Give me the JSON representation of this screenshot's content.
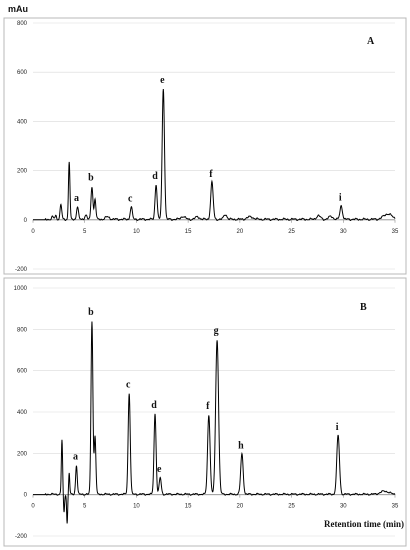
{
  "chart_data": [
    {
      "type": "line",
      "panel_label": "A",
      "ylabel": "mAu",
      "xlabel": "",
      "xlim": [
        0,
        35
      ],
      "ylim": [
        -200,
        800
      ],
      "xticks": [
        0,
        5,
        10,
        15,
        20,
        25,
        30,
        35
      ],
      "yticks": [
        -200,
        0,
        200,
        400,
        600,
        800
      ],
      "peaks": [
        {
          "label": "",
          "x": 1.9,
          "y": 10,
          "w": 0.08
        },
        {
          "label": "",
          "x": 2.2,
          "y": 15,
          "w": 0.08
        },
        {
          "label": "",
          "x": 2.7,
          "y": 60,
          "w": 0.08
        },
        {
          "label": "",
          "x": 3.5,
          "y": 235,
          "w": 0.07
        },
        {
          "label": "a",
          "x": 4.3,
          "y": 52,
          "w": 0.09
        },
        {
          "label": "",
          "x": 5.1,
          "y": 18,
          "w": 0.1
        },
        {
          "label": "b",
          "x": 5.7,
          "y": 135,
          "w": 0.09
        },
        {
          "label": "",
          "x": 6.0,
          "y": 82,
          "w": 0.08
        },
        {
          "label": "",
          "x": 7.2,
          "y": 10,
          "w": 0.2
        },
        {
          "label": "c",
          "x": 9.5,
          "y": 50,
          "w": 0.1
        },
        {
          "label": "d",
          "x": 11.9,
          "y": 142,
          "w": 0.1
        },
        {
          "label": "e",
          "x": 12.6,
          "y": 532,
          "w": 0.11
        },
        {
          "label": "",
          "x": 14.5,
          "y": 12,
          "w": 0.2
        },
        {
          "label": "",
          "x": 15.9,
          "y": 10,
          "w": 0.2
        },
        {
          "label": "f",
          "x": 17.3,
          "y": 150,
          "w": 0.12
        },
        {
          "label": "",
          "x": 18.6,
          "y": 20,
          "w": 0.15
        },
        {
          "label": "",
          "x": 21.0,
          "y": 10,
          "w": 0.3
        },
        {
          "label": "",
          "x": 27.6,
          "y": 14,
          "w": 0.2
        },
        {
          "label": "",
          "x": 28.8,
          "y": 12,
          "w": 0.2
        },
        {
          "label": "i",
          "x": 29.8,
          "y": 55,
          "w": 0.12
        },
        {
          "label": "",
          "x": 34.3,
          "y": 22,
          "w": 0.4
        }
      ]
    },
    {
      "type": "line",
      "panel_label": "B",
      "ylabel": "",
      "xlabel": "Retention time (min)",
      "xlim": [
        0,
        35
      ],
      "ylim": [
        -200,
        1000
      ],
      "xticks": [
        0,
        5,
        10,
        15,
        20,
        25,
        30,
        35
      ],
      "yticks": [
        -200,
        0,
        200,
        400,
        600,
        800,
        1000
      ],
      "peaks": [
        {
          "label": "",
          "x": 2.8,
          "y": 262,
          "w": 0.06
        },
        {
          "label": "",
          "x": 3.0,
          "y": -90,
          "w": 0.05
        },
        {
          "label": "",
          "x": 3.3,
          "y": -140,
          "w": 0.05
        },
        {
          "label": "",
          "x": 3.5,
          "y": 105,
          "w": 0.05
        },
        {
          "label": "a",
          "x": 4.2,
          "y": 140,
          "w": 0.08
        },
        {
          "label": "b",
          "x": 5.7,
          "y": 840,
          "w": 0.09
        },
        {
          "label": "",
          "x": 6.0,
          "y": 280,
          "w": 0.08
        },
        {
          "label": "c",
          "x": 9.3,
          "y": 490,
          "w": 0.1
        },
        {
          "label": "d",
          "x": 11.8,
          "y": 390,
          "w": 0.1
        },
        {
          "label": "e",
          "x": 12.3,
          "y": 80,
          "w": 0.1
        },
        {
          "label": "f",
          "x": 17.0,
          "y": 385,
          "w": 0.12
        },
        {
          "label": "g",
          "x": 17.8,
          "y": 750,
          "w": 0.14
        },
        {
          "label": "h",
          "x": 20.2,
          "y": 195,
          "w": 0.12
        },
        {
          "label": "i",
          "x": 29.5,
          "y": 285,
          "w": 0.13
        },
        {
          "label": "",
          "x": 34.0,
          "y": 15,
          "w": 0.4
        }
      ]
    }
  ]
}
